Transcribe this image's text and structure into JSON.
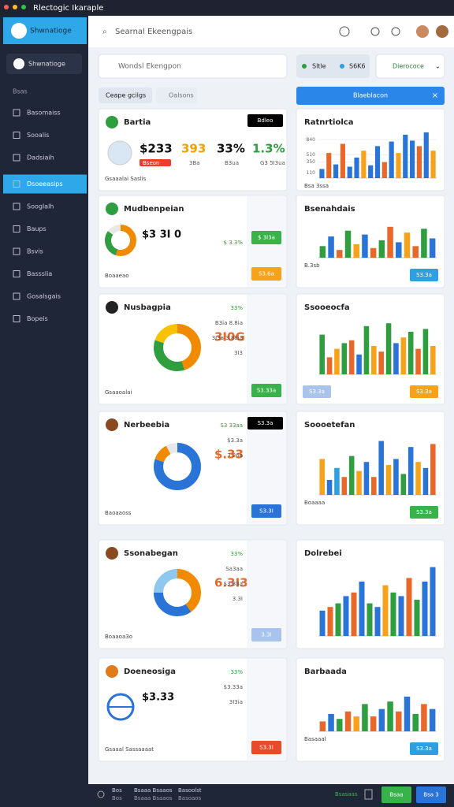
{
  "window": {
    "title": "Rlectogic Ikaraple"
  },
  "sidebar": {
    "profile": "Shwnatioge",
    "section": "Bsas",
    "items": [
      "Basomaiss",
      "Sooalis",
      "Dadsiaih",
      "Dsoeeasips",
      "Sooglalh",
      "Baups",
      "Bsvis",
      "Bassslia",
      "Gosalsgais",
      "Bopeis"
    ],
    "active": 3
  },
  "header": {
    "search": "Searnal Ekeengpais"
  },
  "toolbar": {
    "search": "Wondsl Ekengpon",
    "tabs": [
      "Ceape gcilgs",
      "Oalsons"
    ],
    "chips": [
      "Sltle",
      "S6K6"
    ],
    "dropdown": "Dierococe",
    "banner": "Blaeblacon"
  },
  "cards": [
    {
      "title": "Bartia",
      "icon": "#2e9e3e",
      "badge": "Bdleo",
      "stats": [
        "$233",
        "393",
        "33%",
        "1.3%"
      ],
      "stat_colors": [
        "#111111",
        "#f0a000",
        "#111111",
        "#2e9e3e"
      ],
      "subs": [
        "Bseon",
        "3Ba",
        "B3ua",
        "G3 5I3ua"
      ],
      "footer": "Gsaaalai Saslis"
    },
    {
      "title": "Mudbenpeian",
      "icon": "#2e9e3e",
      "main": "$3 3I 0",
      "donut": {
        "values": [
          55,
          30,
          15
        ],
        "colors": [
          "#f08a00",
          "#2e9e3e",
          "#e8e8e8"
        ]
      },
      "side": [
        "$ 3.3%"
      ],
      "buttons": [
        {
          "text": "$ 3I3a",
          "color": "#38b24a"
        },
        {
          "text": "S3.6a",
          "color": "#f7a21b"
        }
      ],
      "footer": "Boaaeao"
    },
    {
      "title": "Nusbagpia",
      "icon": "#222222",
      "main": "3I0G",
      "donut": {
        "values": [
          45,
          35,
          20
        ],
        "colors": [
          "#f08a00",
          "#2e9e3e",
          "#f7c200"
        ]
      },
      "side": [
        "33%",
        "B3ia 8.8ia",
        "3I3a 3.88ia",
        "3I3"
      ],
      "buttons": [
        {
          "text": "S3.33a",
          "color": "#38b24a"
        }
      ],
      "footer": "Gsaaoalai"
    },
    {
      "title": "Nerbeebia",
      "icon": "#8a4a20",
      "badge": "S3.3a",
      "main": "$.33",
      "donut": {
        "values": [
          80,
          12,
          8
        ],
        "colors": [
          "#2a74d8",
          "#f08a00",
          "#e8e8e8"
        ]
      },
      "side": [
        "S3 33aa",
        "$3.3a",
        "3 36a"
      ],
      "buttons": [
        {
          "text": "S3.3I",
          "color": "#2a74d8"
        }
      ],
      "footer": "Baoaaoss"
    },
    {
      "title": "Ssonabegan",
      "icon": "#8a4a20",
      "main": "6.3I3",
      "donut": {
        "values": [
          40,
          35,
          25
        ],
        "colors": [
          "#f08a00",
          "#2a74d8",
          "#8ec8ee"
        ]
      },
      "side": [
        "33%",
        "Sa3aa",
        "$3.33a",
        "3.3I"
      ],
      "buttons": [
        {
          "text": "3.3I",
          "color": "#a9c4ec"
        }
      ],
      "footer": "Boaaoa3o"
    },
    {
      "title": "Doeneosiga",
      "icon": "#e07b1a",
      "main": "$3.33",
      "globe": "#2a74d8",
      "side": [
        "33%",
        "$3.33a",
        "3I3ia"
      ],
      "buttons": [
        {
          "text": "S3.3I",
          "color": "#e84a2a"
        }
      ],
      "footer": "Gsaaal Sassaaaat"
    }
  ],
  "charts": [
    {
      "title": "Ratnrtiolca",
      "ylim": [
        0,
        1000
      ],
      "yticks": [
        840,
        510,
        350,
        110
      ],
      "values": [
        200,
        550,
        300,
        750,
        250,
        450,
        600,
        280,
        700,
        350,
        800,
        550,
        950,
        820,
        700,
        1000,
        600
      ],
      "colors": [
        "#2a74d8",
        "#e8682a",
        "#2a74d8",
        "#e8682a",
        "#2a74d8",
        "#2a74d8",
        "#f7a21b",
        "#2a74d8",
        "#2a74d8",
        "#e8682a",
        "#2a74d8",
        "#f7a21b",
        "#2a74d8",
        "#2a74d8",
        "#e8682a",
        "#2a74d8",
        "#f7a21b"
      ],
      "legend": "Bsa 3ssa"
    },
    {
      "title": "Bsenahdais",
      "ylim": [
        0,
        100
      ],
      "values": [
        30,
        55,
        20,
        70,
        35,
        60,
        25,
        45,
        80,
        40,
        65,
        30,
        75,
        50
      ],
      "colors": [
        "#2e9e3e",
        "#2a74d8",
        "#e8682a",
        "#2e9e3e",
        "#f7a21b",
        "#2a74d8",
        "#e8682a",
        "#2e9e3e",
        "#e8682a",
        "#2a74d8",
        "#f7a21b",
        "#e8682a",
        "#2e9e3e",
        "#2a74d8"
      ],
      "legend": "B.3sb",
      "buttons": [
        {
          "text": "S3.3a",
          "color": "#2ea0e0"
        }
      ]
    },
    {
      "title": "Ssooeocfa",
      "ylim": [
        0,
        100
      ],
      "values": [
        70,
        30,
        45,
        55,
        60,
        35,
        85,
        50,
        40,
        90,
        55,
        65,
        75,
        45,
        80,
        50
      ],
      "colors": [
        "#2e9e3e",
        "#e8682a",
        "#f7a21b",
        "#2e9e3e",
        "#e8682a",
        "#2a74d8",
        "#2e9e3e",
        "#f7a21b",
        "#e8682a",
        "#2e9e3e",
        "#2a74d8",
        "#f7a21b",
        "#2e9e3e",
        "#e8682a",
        "#2e9e3e",
        "#f7a21b"
      ],
      "buttons": [
        {
          "text": "S3.3a",
          "color": "#a9c4ec"
        },
        {
          "text": "S3.3a",
          "color": "#f7a21b"
        }
      ]
    },
    {
      "title": "Soooetefan",
      "ylim": [
        0,
        100
      ],
      "values": [
        60,
        25,
        45,
        30,
        65,
        40,
        55,
        30,
        90,
        50,
        60,
        35,
        80,
        55,
        45,
        85
      ],
      "colors": [
        "#f7a21b",
        "#2a74d8",
        "#2ea0e0",
        "#e8682a",
        "#2e9e3e",
        "#f7a21b",
        "#2a74d8",
        "#e8682a",
        "#2a74d8",
        "#f7a21b",
        "#2a74d8",
        "#2e9e3e",
        "#2a74d8",
        "#f7a21b",
        "#2a74d8",
        "#e8682a"
      ],
      "legend": "Boaaaa",
      "buttons": [
        {
          "text": "S3.3a",
          "color": "#38b24a"
        }
      ]
    },
    {
      "title": "Dolrebei",
      "ylim": [
        0,
        100
      ],
      "values": [
        35,
        40,
        45,
        55,
        60,
        75,
        45,
        40,
        70,
        60,
        55,
        80,
        50,
        75,
        95
      ],
      "colors": [
        "#2a74d8",
        "#e8682a",
        "#2e9e3e",
        "#2a74d8",
        "#e8682a",
        "#2a74d8",
        "#2e9e3e",
        "#2a74d8",
        "#f7a21b",
        "#2e9e3e",
        "#2a74d8",
        "#e8682a",
        "#2e9e3e",
        "#2a74d8",
        "#2a74d8"
      ]
    },
    {
      "title": "Barbaada",
      "ylim": [
        0,
        100
      ],
      "values": [
        20,
        35,
        25,
        40,
        30,
        55,
        30,
        45,
        60,
        40,
        70,
        35,
        55,
        45
      ],
      "colors": [
        "#e8682a",
        "#2a74d8",
        "#2e9e3e",
        "#e8682a",
        "#f7a21b",
        "#2e9e3e",
        "#e8682a",
        "#2a74d8",
        "#2e9e3e",
        "#e8682a",
        "#2a74d8",
        "#2e9e3e",
        "#e8682a",
        "#2a74d8"
      ],
      "legend": "Basaaal",
      "buttons": [
        {
          "text": "S3.3a",
          "color": "#2ea0e0"
        }
      ]
    }
  ],
  "footer": {
    "left": [
      "Bos",
      "Bsaaa Bsaaos",
      "Basoolst"
    ],
    "left2": [
      "Bos",
      "Bsaaa Bsaaos",
      "Basoaos"
    ],
    "status": "Bsasaas",
    "buttons": [
      {
        "text": "Bsaa",
        "color": "#38b24a"
      },
      {
        "text": "Bsa 3",
        "color": "#2a74d8"
      }
    ]
  }
}
